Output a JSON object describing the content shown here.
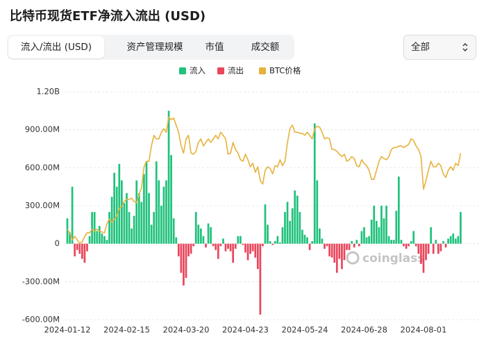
{
  "chart_data": {
    "type": "bar",
    "title": "比特币现货ETF净流入流出 (USD)",
    "controls": {
      "tabs": [
        "流入/流出 (USD)",
        "资产管理规模",
        "市值",
        "成交额"
      ],
      "range_select": "全部"
    },
    "watermark": "coinglass",
    "categories": [
      "2024-01-12",
      null,
      null,
      null,
      null,
      null,
      null,
      null,
      null,
      null,
      null,
      null,
      null,
      null,
      null,
      null,
      null,
      null,
      null,
      null,
      null,
      null,
      null,
      null,
      "2024-02-15",
      null,
      null,
      null,
      null,
      null,
      null,
      null,
      null,
      null,
      null,
      null,
      null,
      null,
      null,
      null,
      null,
      null,
      null,
      null,
      null,
      null,
      null,
      null,
      "2024-03-20",
      null,
      null,
      null,
      null,
      null,
      null,
      null,
      null,
      null,
      null,
      null,
      null,
      null,
      null,
      null,
      null,
      null,
      null,
      null,
      null,
      null,
      null,
      null,
      "2024-04-23",
      null,
      null,
      null,
      null,
      null,
      null,
      null,
      null,
      null,
      null,
      null,
      null,
      null,
      null,
      null,
      null,
      null,
      null,
      null,
      null,
      null,
      null,
      null,
      "2024-05-24",
      null,
      null,
      null,
      null,
      null,
      null,
      null,
      null,
      null,
      null,
      null,
      null,
      null,
      null,
      null,
      null,
      null,
      null,
      null,
      null,
      null,
      null,
      null,
      "2024-06-28",
      null,
      null,
      null,
      null,
      null,
      null,
      null,
      null,
      null,
      null,
      null,
      null,
      null,
      null,
      null,
      null,
      null,
      null,
      null,
      null,
      null,
      null,
      null,
      "2024-08-01",
      null,
      null,
      null,
      null,
      null,
      null,
      null,
      null,
      null,
      null,
      null,
      null,
      null,
      null,
      null
    ],
    "series": [
      {
        "name": "流入",
        "color": "#1fc17b",
        "values": [
          200000000.0,
          90000000.0,
          450000000.0,
          null,
          null,
          null,
          null,
          null,
          null,
          60000000.0,
          250000000.0,
          250000000.0,
          100000000.0,
          140000000.0,
          80000000.0,
          60000000.0,
          30000000.0,
          250000000.0,
          370000000.0,
          560000000.0,
          450000000.0,
          630000000.0,
          500000000.0,
          320000000.0,
          400000000.0,
          250000000.0,
          120000000.0,
          220000000.0,
          500000000.0,
          400000000.0,
          330000000.0,
          550000000.0,
          650000000.0,
          400000000.0,
          150000000.0,
          250000000.0,
          650000000.0,
          500000000.0,
          300000000.0,
          450000000.0,
          500000000.0,
          1050000000.0,
          700000000.0,
          200000000.0,
          50000000.0,
          null,
          null,
          null,
          null,
          null,
          null,
          null,
          250000000.0,
          150000000.0,
          120000000.0,
          60000000.0,
          null,
          160000000.0,
          130000000.0,
          null,
          null,
          null,
          null,
          40000000.0,
          null,
          null,
          null,
          null,
          null,
          60000000.0,
          60000000.0,
          null,
          null,
          null,
          null,
          null,
          null,
          null,
          null,
          null,
          310000000.0,
          150000000.0,
          20000000.0,
          null,
          20000000.0,
          60000000.0,
          10000000.0,
          130000000.0,
          250000000.0,
          330000000.0,
          180000000.0,
          280000000.0,
          420000000.0,
          380000000.0,
          250000000.0,
          110000000.0,
          70000000.0,
          50000000.0,
          null,
          20000000.0,
          950000000.0,
          500000000.0,
          120000000.0,
          40000000.0,
          null,
          null,
          null,
          null,
          null,
          null,
          null,
          null,
          null,
          null,
          null,
          20000000.0,
          null,
          30000000.0,
          null,
          100000000.0,
          130000000.0,
          50000000.0,
          60000000.0,
          190000000.0,
          300000000.0,
          180000000.0,
          130000000.0,
          300000000.0,
          200000000.0,
          300000000.0,
          60000000.0,
          30000000.0,
          30000000.0,
          260000000.0,
          530000000.0,
          30000000.0,
          null,
          null,
          null,
          20000000.0,
          100000000.0,
          null,
          null,
          null,
          null,
          null,
          null,
          130000000.0,
          null,
          30000000.0,
          null,
          null,
          20000000.0,
          null,
          40000000.0,
          60000000.0,
          80000000.0,
          40000000.0,
          60000000.0,
          250000000.0
        ]
      },
      {
        "name": "流出",
        "color": "#e9455b",
        "values": [
          null,
          null,
          null,
          -100000000.0,
          -50000000.0,
          -80000000.0,
          -120000000.0,
          -150000000.0,
          -60000000.0,
          null,
          null,
          null,
          null,
          null,
          null,
          null,
          null,
          null,
          null,
          null,
          null,
          null,
          null,
          null,
          null,
          null,
          null,
          null,
          null,
          null,
          null,
          null,
          null,
          null,
          null,
          null,
          null,
          null,
          null,
          null,
          null,
          null,
          null,
          null,
          null,
          -100000000.0,
          -230000000.0,
          -330000000.0,
          -270000000.0,
          -100000000.0,
          -80000000.0,
          -20000000.0,
          null,
          null,
          null,
          null,
          -30000000.0,
          null,
          null,
          -20000000.0,
          -50000000.0,
          -120000000.0,
          -20000000.0,
          null,
          -60000000.0,
          -40000000.0,
          -60000000.0,
          -150000000.0,
          -40000000.0,
          null,
          null,
          -10000000.0,
          -70000000.0,
          -130000000.0,
          -80000000.0,
          -60000000.0,
          -110000000.0,
          -200000000.0,
          -560000000.0,
          -20000000.0,
          null,
          null,
          null,
          -10000000.0,
          null,
          null,
          null,
          null,
          null,
          null,
          null,
          null,
          null,
          null,
          null,
          null,
          null,
          null,
          -50000000.0,
          null,
          null,
          null,
          null,
          null,
          -40000000.0,
          -20000000.0,
          -100000000.0,
          -110000000.0,
          -150000000.0,
          -230000000.0,
          -120000000.0,
          -200000000.0,
          -130000000.0,
          -50000000.0,
          -50000000.0,
          null,
          -30000000.0,
          null,
          -20000000.0,
          null,
          null,
          null,
          null,
          null,
          null,
          null,
          null,
          null,
          null,
          null,
          null,
          null,
          null,
          null,
          null,
          null,
          -20000000.0,
          -40000000.0,
          -20000000.0,
          null,
          null,
          -20000000.0,
          -80000000.0,
          -160000000.0,
          -230000000.0,
          -130000000.0,
          -80000000.0,
          null,
          -80000000.0,
          null,
          -80000000.0,
          -60000000.0,
          null,
          -30000000.0,
          null,
          null,
          null,
          null,
          null,
          null
        ]
      },
      {
        "name": "BTC价格",
        "color": "#e6b23a",
        "axis": "y2",
        "values": [
          43000,
          42100,
          40300,
          41200,
          40300,
          39400,
          39800,
          41200,
          42100,
          42100,
          43000,
          42600,
          43000,
          42500,
          42300,
          42100,
          44400,
          45600,
          44800,
          45500,
          46500,
          48300,
          48800,
          50100,
          50600,
          50600,
          50900,
          50100,
          49700,
          51800,
          53600,
          58900,
          60300,
          60300,
          64200,
          66900,
          66000,
          66000,
          67700,
          68600,
          67700,
          71600,
          70900,
          71300,
          69500,
          67700,
          64200,
          62400,
          66000,
          66900,
          62400,
          62100,
          62800,
          65100,
          66000,
          64200,
          65100,
          66000,
          65100,
          66000,
          66900,
          66000,
          67700,
          66900,
          66000,
          62100,
          62400,
          65100,
          63300,
          62400,
          60700,
          60300,
          62100,
          60700,
          58900,
          59800,
          57500,
          58900,
          55400,
          54500,
          58000,
          58900,
          58500,
          57100,
          59200,
          58900,
          60700,
          59200,
          60300,
          65100,
          68600,
          69500,
          67700,
          67700,
          67400,
          67400,
          66900,
          67700,
          66900,
          66000,
          68600,
          69200,
          69000,
          67700,
          66000,
          66300,
          66000,
          63300,
          63300,
          62800,
          62100,
          61500,
          62100,
          60300,
          60700,
          61500,
          61000,
          59200,
          58900,
          60700,
          59800,
          59200,
          58000,
          55700,
          55700,
          58000,
          60300,
          61500,
          61000,
          60700,
          61500,
          63300,
          63800,
          63800,
          64200,
          64200,
          63800,
          64200,
          64600,
          66000,
          65600,
          64200,
          63300,
          61500,
          53200,
          55400,
          58000,
          60300,
          58900,
          58900,
          59800,
          59200,
          57100,
          56200,
          58000,
          58900,
          58000,
          59800,
          59200,
          62400
        ]
      }
    ],
    "ylim": [
      -600000000.0,
      1200000000.0
    ],
    "yticks": [
      {
        "value": -600000000.0,
        "label": "-600.00M"
      },
      {
        "value": -300000000.0,
        "label": "-300.00M"
      },
      0,
      {
        "value": 300000000.0,
        "label": "300.00M"
      },
      {
        "value": 600000000.0,
        "label": "600.00M"
      },
      {
        "value": 900000000.0,
        "label": "900.00M"
      },
      {
        "value": 1200000000.0,
        "label": "1.20B"
      }
    ],
    "y2lim": [
      20000,
      78000
    ],
    "grid": true,
    "legend": "top"
  }
}
